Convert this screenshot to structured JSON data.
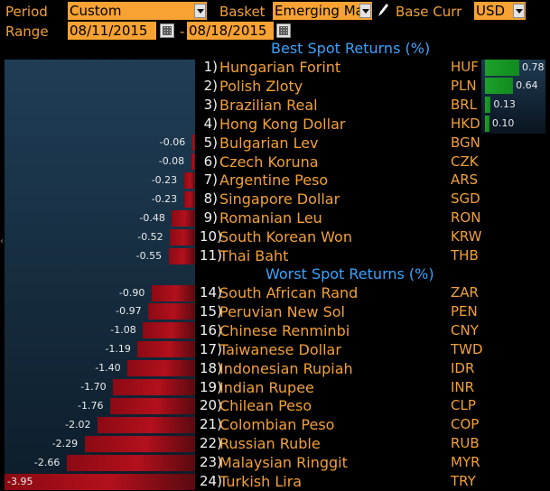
{
  "header": {
    "period_label": "Period",
    "period_value": "Custom",
    "basket_label": "Basket",
    "basket_value": "Emerging Ma",
    "base_curr_label": "Base Curr",
    "base_curr_value": "USD",
    "range_label": "Range",
    "range_start": "08/11/2015",
    "range_sep": "-",
    "range_end": "08/18/2015"
  },
  "best": {
    "title": "Best Spot Returns (%)",
    "rows": [
      {
        "rank": "1)",
        "name": "Hungarian Forint",
        "code": "HUF",
        "value": "0.78",
        "num": 0.78
      },
      {
        "rank": "2)",
        "name": "Polish Zloty",
        "code": "PLN",
        "value": "0.64",
        "num": 0.64
      },
      {
        "rank": "3)",
        "name": "Brazilian Real",
        "code": "BRL",
        "value": "0.13",
        "num": 0.13
      },
      {
        "rank": "4)",
        "name": "Hong Kong Dollar",
        "code": "HKD",
        "value": "0.10",
        "num": 0.1
      },
      {
        "rank": "5)",
        "name": "Bulgarian Lev",
        "code": "BGN",
        "value": "-0.06",
        "num": -0.06
      },
      {
        "rank": "6)",
        "name": "Czech Koruna",
        "code": "CZK",
        "value": "-0.08",
        "num": -0.08
      },
      {
        "rank": "7)",
        "name": "Argentine Peso",
        "code": "ARS",
        "value": "-0.23",
        "num": -0.23
      },
      {
        "rank": "8)",
        "name": "Singapore Dollar",
        "code": "SGD",
        "value": "-0.23",
        "num": -0.23
      },
      {
        "rank": "9)",
        "name": "Romanian Leu",
        "code": "RON",
        "value": "-0.48",
        "num": -0.48
      },
      {
        "rank": "10)",
        "name": "South Korean Won",
        "code": "KRW",
        "value": "-0.52",
        "num": -0.52
      },
      {
        "rank": "11)",
        "name": "Thai Baht",
        "code": "THB",
        "value": "-0.55",
        "num": -0.55
      }
    ]
  },
  "worst": {
    "title": "Worst Spot Returns (%)",
    "rows": [
      {
        "rank": "14)",
        "name": "South African Rand",
        "code": "ZAR",
        "value": "-0.90",
        "num": -0.9
      },
      {
        "rank": "15)",
        "name": "Peruvian New Sol",
        "code": "PEN",
        "value": "-0.97",
        "num": -0.97
      },
      {
        "rank": "16)",
        "name": "Chinese Renminbi",
        "code": "CNY",
        "value": "-1.08",
        "num": -1.08
      },
      {
        "rank": "17)",
        "name": "Taiwanese Dollar",
        "code": "TWD",
        "value": "-1.19",
        "num": -1.19
      },
      {
        "rank": "18)",
        "name": "Indonesian Rupiah",
        "code": "IDR",
        "value": "-1.40",
        "num": -1.4
      },
      {
        "rank": "19)",
        "name": "Indian Rupee",
        "code": "INR",
        "value": "-1.70",
        "num": -1.7
      },
      {
        "rank": "20)",
        "name": "Chilean Peso",
        "code": "CLP",
        "value": "-1.76",
        "num": -1.76
      },
      {
        "rank": "21)",
        "name": "Colombian Peso",
        "code": "COP",
        "value": "-2.02",
        "num": -2.02
      },
      {
        "rank": "22)",
        "name": "Russian Ruble",
        "code": "RUB",
        "value": "-2.29",
        "num": -2.29
      },
      {
        "rank": "23)",
        "name": "Malaysian Ringgit",
        "code": "MYR",
        "value": "-2.66",
        "num": -2.66
      },
      {
        "rank": "24)",
        "name": "Turkish Lira",
        "code": "TRY",
        "value": "-3.95",
        "num": -3.95
      }
    ]
  },
  "colors": {
    "accent": "#f7a233",
    "text_orange": "#f2a03a",
    "title_blue": "#3aa3ff",
    "negative": "#b3101c",
    "positive": "#1da12a"
  }
}
